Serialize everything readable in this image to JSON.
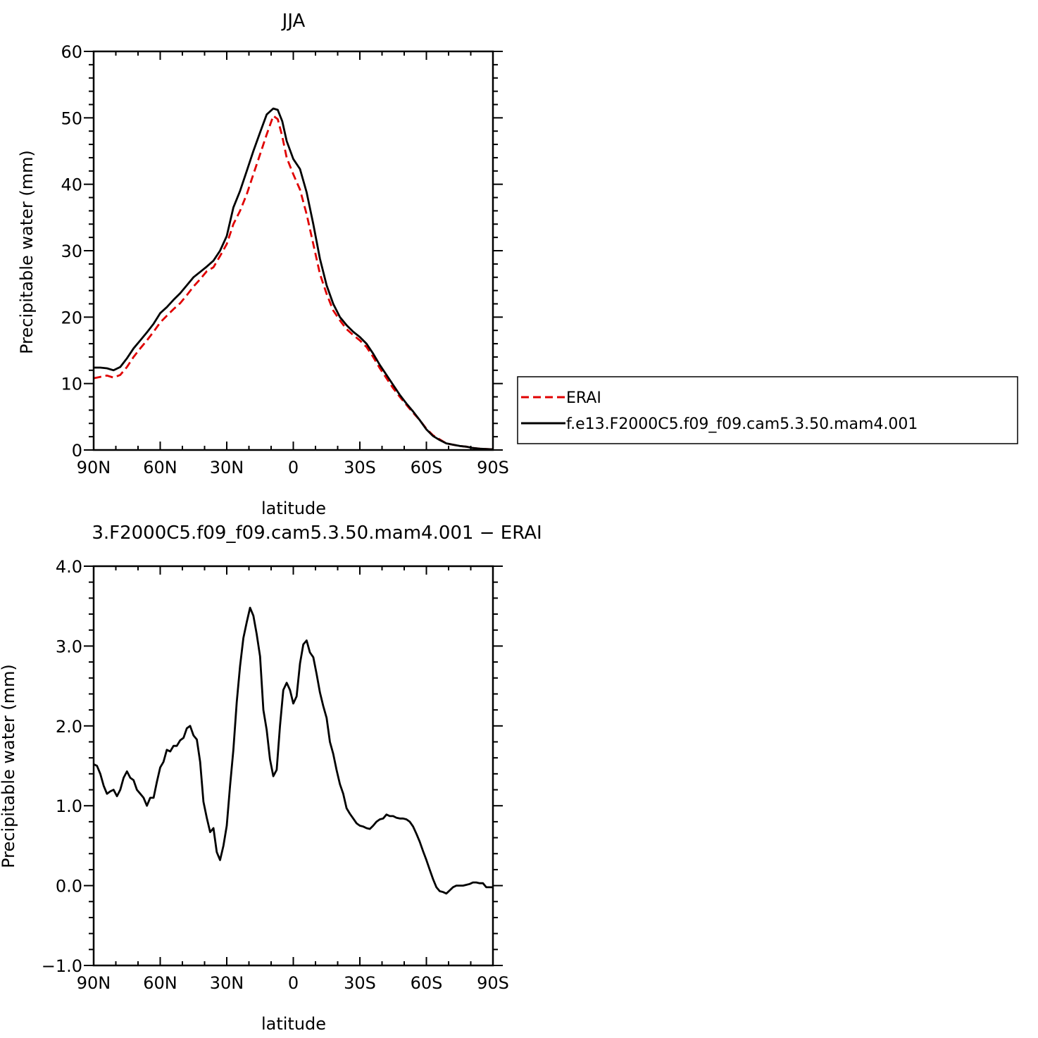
{
  "chart_data": [
    {
      "type": "line",
      "title": "JJA",
      "xlabel": "latitude",
      "ylabel": "Precipitable water (mm)",
      "xlim": [
        90,
        -90
      ],
      "ylim": [
        0,
        60
      ],
      "xticks": [
        90,
        60,
        30,
        0,
        -30,
        -60,
        -90
      ],
      "xtick_labels": [
        "90N",
        "60N",
        "30N",
        "0",
        "30S",
        "60S",
        "90S"
      ],
      "yticks": [
        0,
        10,
        20,
        30,
        40,
        50,
        60
      ],
      "ytick_labels": [
        "0",
        "10",
        "20",
        "30",
        "40",
        "50",
        "60"
      ],
      "grid": false,
      "legend_position": "right",
      "series": [
        {
          "name": "ERAI",
          "color": "#e00000",
          "dash": "dashed",
          "points": [
            [
              90,
              10.8
            ],
            [
              87,
              11.0
            ],
            [
              84,
              11.2
            ],
            [
              81,
              10.9
            ],
            [
              78,
              11.3
            ],
            [
              75,
              12.5
            ],
            [
              72,
              14.0
            ],
            [
              69,
              15.3
            ],
            [
              66,
              16.5
            ],
            [
              63,
              17.8
            ],
            [
              60,
              19.2
            ],
            [
              57,
              20.2
            ],
            [
              54,
              21.2
            ],
            [
              51,
              22.1
            ],
            [
              48,
              23.3
            ],
            [
              45,
              24.6
            ],
            [
              42,
              25.7
            ],
            [
              39,
              26.9
            ],
            [
              36,
              27.5
            ],
            [
              33,
              29.2
            ],
            [
              30,
              31.0
            ],
            [
              27,
              34.0
            ],
            [
              24,
              36.0
            ],
            [
              21,
              38.5
            ],
            [
              18,
              41.5
            ],
            [
              15,
              44.5
            ],
            [
              12,
              47.5
            ],
            [
              9,
              50.3
            ],
            [
              7,
              49.8
            ],
            [
              5,
              47.2
            ],
            [
              3,
              44.0
            ],
            [
              0,
              41.5
            ],
            [
              -3,
              39.2
            ],
            [
              -6,
              35.5
            ],
            [
              -9,
              31.0
            ],
            [
              -12,
              26.5
            ],
            [
              -15,
              23.5
            ],
            [
              -18,
              21.0
            ],
            [
              -21,
              19.5
            ],
            [
              -24,
              18.2
            ],
            [
              -27,
              17.3
            ],
            [
              -30,
              16.5
            ],
            [
              -33,
              15.5
            ],
            [
              -36,
              14.0
            ],
            [
              -39,
              12.3
            ],
            [
              -42,
              10.8
            ],
            [
              -45,
              9.3
            ],
            [
              -48,
              8.0
            ],
            [
              -51,
              6.8
            ],
            [
              -54,
              5.6
            ],
            [
              -57,
              4.5
            ],
            [
              -60,
              3.2
            ],
            [
              -63,
              2.2
            ],
            [
              -66,
              1.6
            ],
            [
              -69,
              1.0
            ],
            [
              -72,
              0.8
            ],
            [
              -75,
              0.6
            ],
            [
              -78,
              0.5
            ],
            [
              -81,
              0.3
            ],
            [
              -84,
              0.2
            ],
            [
              -87,
              0.15
            ],
            [
              -90,
              0.1
            ]
          ]
        },
        {
          "name": "f.e13.F2000C5.f09_f09.cam5.3.50.mam4.001",
          "color": "#000000",
          "dash": "solid",
          "points": [
            [
              90,
              12.4
            ],
            [
              87,
              12.4
            ],
            [
              84,
              12.3
            ],
            [
              81,
              12.0
            ],
            [
              78,
              12.5
            ],
            [
              75,
              13.8
            ],
            [
              72,
              15.3
            ],
            [
              69,
              16.5
            ],
            [
              66,
              17.7
            ],
            [
              63,
              19.0
            ],
            [
              60,
              20.6
            ],
            [
              57,
              21.5
            ],
            [
              54,
              22.6
            ],
            [
              51,
              23.6
            ],
            [
              48,
              24.8
            ],
            [
              45,
              26.0
            ],
            [
              42,
              26.8
            ],
            [
              39,
              27.6
            ],
            [
              36,
              28.5
            ],
            [
              33,
              30.0
            ],
            [
              30,
              32.2
            ],
            [
              27,
              36.5
            ],
            [
              24,
              39.0
            ],
            [
              21,
              42.0
            ],
            [
              18,
              45.0
            ],
            [
              15,
              47.8
            ],
            [
              12,
              50.5
            ],
            [
              9,
              51.4
            ],
            [
              7,
              51.2
            ],
            [
              5,
              49.5
            ],
            [
              3,
              46.5
            ],
            [
              0,
              43.8
            ],
            [
              -3,
              42.3
            ],
            [
              -6,
              38.8
            ],
            [
              -9,
              34.0
            ],
            [
              -12,
              28.8
            ],
            [
              -15,
              24.8
            ],
            [
              -18,
              22.0
            ],
            [
              -21,
              20.0
            ],
            [
              -24,
              18.8
            ],
            [
              -27,
              17.8
            ],
            [
              -30,
              17.0
            ],
            [
              -33,
              16.0
            ],
            [
              -36,
              14.5
            ],
            [
              -39,
              12.8
            ],
            [
              -42,
              11.3
            ],
            [
              -45,
              9.8
            ],
            [
              -48,
              8.3
            ],
            [
              -51,
              7.0
            ],
            [
              -54,
              5.8
            ],
            [
              -57,
              4.5
            ],
            [
              -60,
              3.1
            ],
            [
              -63,
              2.1
            ],
            [
              -66,
              1.5
            ],
            [
              -69,
              1.0
            ],
            [
              -72,
              0.8
            ],
            [
              -75,
              0.6
            ],
            [
              -78,
              0.5
            ],
            [
              -81,
              0.3
            ],
            [
              -84,
              0.2
            ],
            [
              -87,
              0.15
            ],
            [
              -90,
              0.1
            ]
          ]
        }
      ]
    },
    {
      "type": "line",
      "title": "3.F2000C5.f09_f09.cam5.3.50.mam4.001 − ERAI",
      "xlabel": "latitude",
      "ylabel": "Precipitable water (mm)",
      "xlim": [
        90,
        -90
      ],
      "ylim": [
        -1,
        4
      ],
      "xticks": [
        90,
        60,
        30,
        0,
        -30,
        -60,
        -90
      ],
      "xtick_labels": [
        "90N",
        "60N",
        "30N",
        "0",
        "30S",
        "60S",
        "90S"
      ],
      "yticks": [
        -1,
        0,
        1,
        2,
        3,
        4
      ],
      "ytick_labels": [
        "−1.0",
        "0.0",
        "1.0",
        "2.0",
        "3.0",
        "4.0"
      ],
      "grid": false,
      "series": [
        {
          "color": "#000000",
          "dash": "solid",
          "points": [
            [
              90,
              1.52
            ],
            [
              88.5,
              1.5
            ],
            [
              87,
              1.4
            ],
            [
              85.5,
              1.25
            ],
            [
              84,
              1.15
            ],
            [
              82.5,
              1.18
            ],
            [
              81,
              1.2
            ],
            [
              79.5,
              1.12
            ],
            [
              78,
              1.2
            ],
            [
              76.5,
              1.35
            ],
            [
              75,
              1.43
            ],
            [
              73.5,
              1.35
            ],
            [
              72,
              1.32
            ],
            [
              70.5,
              1.2
            ],
            [
              69,
              1.15
            ],
            [
              67.5,
              1.1
            ],
            [
              66,
              1.0
            ],
            [
              64.5,
              1.1
            ],
            [
              63,
              1.1
            ],
            [
              61.5,
              1.3
            ],
            [
              60,
              1.48
            ],
            [
              58.5,
              1.55
            ],
            [
              57,
              1.7
            ],
            [
              55.5,
              1.68
            ],
            [
              54,
              1.75
            ],
            [
              52.5,
              1.75
            ],
            [
              51,
              1.82
            ],
            [
              49.5,
              1.85
            ],
            [
              48,
              1.97
            ],
            [
              46.5,
              2.0
            ],
            [
              45,
              1.88
            ],
            [
              43.5,
              1.83
            ],
            [
              42,
              1.55
            ],
            [
              40.5,
              1.05
            ],
            [
              39,
              0.85
            ],
            [
              37.5,
              0.67
            ],
            [
              36,
              0.72
            ],
            [
              34.5,
              0.42
            ],
            [
              33,
              0.32
            ],
            [
              31.5,
              0.5
            ],
            [
              30,
              0.75
            ],
            [
              28.5,
              1.25
            ],
            [
              27,
              1.7
            ],
            [
              25.5,
              2.3
            ],
            [
              24,
              2.75
            ],
            [
              22.5,
              3.1
            ],
            [
              21,
              3.3
            ],
            [
              19.5,
              3.48
            ],
            [
              18,
              3.38
            ],
            [
              16.5,
              3.15
            ],
            [
              15,
              2.87
            ],
            [
              13.5,
              2.2
            ],
            [
              12,
              1.95
            ],
            [
              10.5,
              1.58
            ],
            [
              9,
              1.37
            ],
            [
              7.5,
              1.45
            ],
            [
              6,
              2.0
            ],
            [
              4.5,
              2.45
            ],
            [
              3,
              2.54
            ],
            [
              1.5,
              2.45
            ],
            [
              0,
              2.28
            ],
            [
              -1.5,
              2.37
            ],
            [
              -3,
              2.78
            ],
            [
              -4.5,
              3.02
            ],
            [
              -6,
              3.07
            ],
            [
              -7.5,
              2.92
            ],
            [
              -9,
              2.86
            ],
            [
              -10.5,
              2.65
            ],
            [
              -12,
              2.42
            ],
            [
              -13.5,
              2.25
            ],
            [
              -15,
              2.1
            ],
            [
              -16.5,
              1.8
            ],
            [
              -18,
              1.65
            ],
            [
              -19.5,
              1.45
            ],
            [
              -21,
              1.27
            ],
            [
              -22.5,
              1.15
            ],
            [
              -24,
              0.97
            ],
            [
              -25.5,
              0.9
            ],
            [
              -27,
              0.84
            ],
            [
              -28.5,
              0.78
            ],
            [
              -30,
              0.75
            ],
            [
              -31.5,
              0.74
            ],
            [
              -33,
              0.72
            ],
            [
              -34.5,
              0.71
            ],
            [
              -36,
              0.75
            ],
            [
              -37.5,
              0.8
            ],
            [
              -39,
              0.83
            ],
            [
              -40.5,
              0.84
            ],
            [
              -42,
              0.89
            ],
            [
              -43.5,
              0.87
            ],
            [
              -45,
              0.87
            ],
            [
              -46.5,
              0.85
            ],
            [
              -48,
              0.84
            ],
            [
              -49.5,
              0.84
            ],
            [
              -51,
              0.83
            ],
            [
              -52.5,
              0.8
            ],
            [
              -54,
              0.74
            ],
            [
              -55.5,
              0.65
            ],
            [
              -57,
              0.55
            ],
            [
              -58.5,
              0.43
            ],
            [
              -60,
              0.32
            ],
            [
              -61.5,
              0.2
            ],
            [
              -63,
              0.08
            ],
            [
              -64.5,
              -0.02
            ],
            [
              -66,
              -0.07
            ],
            [
              -67.5,
              -0.08
            ],
            [
              -69,
              -0.1
            ],
            [
              -70.5,
              -0.06
            ],
            [
              -72,
              -0.02
            ],
            [
              -73.5,
              0.0
            ],
            [
              -75,
              0.0
            ],
            [
              -76.5,
              0.0
            ],
            [
              -78,
              0.01
            ],
            [
              -79.5,
              0.02
            ],
            [
              -81,
              0.04
            ],
            [
              -82.5,
              0.04
            ],
            [
              -84,
              0.03
            ],
            [
              -85.5,
              0.03
            ],
            [
              -87,
              -0.02
            ],
            [
              -88.5,
              -0.02
            ],
            [
              -90,
              -0.02
            ]
          ]
        }
      ]
    }
  ]
}
